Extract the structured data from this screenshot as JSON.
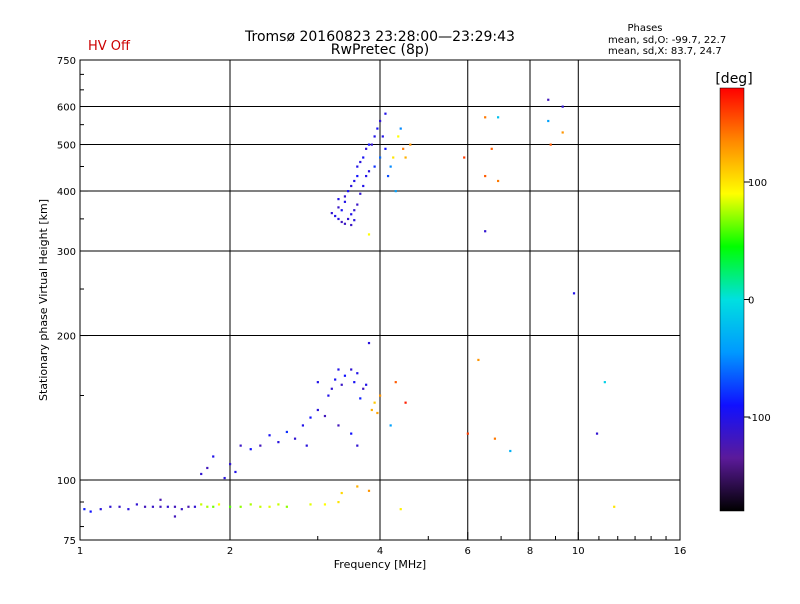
{
  "header": {
    "status": "HV Off",
    "title_line1": "Tromsø 20160823 23:28:00—23:29:43",
    "title_line2": "RwPretec (8p)",
    "phases_title": "Phases",
    "phases_o": "mean, sd,O: -99.7, 22.7",
    "phases_x": "mean, sd,X:  83.7, 24.7"
  },
  "colors": {
    "status": "#cc0000",
    "axis": "#000000",
    "colormap": [
      "#000000",
      "#5b1a9a",
      "#1010ff",
      "#0099ff",
      "#00e0e0",
      "#00ff00",
      "#ffff00",
      "#ff8800",
      "#ff0000"
    ]
  },
  "colorbar": {
    "unit_label": "[deg]",
    "ticks": [
      {
        "value": 100,
        "label": "100"
      },
      {
        "value": 0,
        "label": "0"
      },
      {
        "value": -100,
        "label": "-100"
      }
    ],
    "range": [
      -180,
      180
    ]
  },
  "chart_data": {
    "type": "scatter",
    "xlabel": "Frequency [MHz]",
    "ylabel": "Stationary phase Virtual Height [km]",
    "xscale": "log2",
    "yscale": "log",
    "xlim": [
      1,
      16
    ],
    "ylim": [
      75,
      750
    ],
    "grid": true,
    "x_ticks": [
      {
        "value": 1,
        "label": "1"
      },
      {
        "value": 2,
        "label": "2"
      },
      {
        "value": 4,
        "label": "4"
      },
      {
        "value": 6,
        "label": "6"
      },
      {
        "value": 8,
        "label": "8"
      },
      {
        "value": 10,
        "label": "10"
      },
      {
        "value": 16,
        "label": "16"
      }
    ],
    "x_gridlines": [
      2,
      4,
      6,
      8,
      10
    ],
    "x_minor": [
      3,
      5,
      7,
      9,
      11,
      12,
      13,
      14,
      15
    ],
    "y_ticks": [
      {
        "value": 75,
        "label": "75"
      },
      {
        "value": 100,
        "label": "100"
      },
      {
        "value": 200,
        "label": "200"
      },
      {
        "value": 300,
        "label": "300"
      },
      {
        "value": 400,
        "label": "400"
      },
      {
        "value": 500,
        "label": "500"
      },
      {
        "value": 600,
        "label": "600"
      },
      {
        "value": 750,
        "label": "750"
      }
    ],
    "y_gridlines": [
      100,
      200,
      300,
      400,
      500,
      600
    ],
    "y_minor": [
      80,
      90,
      150,
      250,
      350,
      450,
      550,
      650,
      700
    ],
    "series": [
      {
        "points": [
          [
            1.02,
            87,
            -85
          ],
          [
            1.05,
            86,
            -90
          ],
          [
            1.1,
            87,
            -105
          ],
          [
            1.15,
            88,
            -110
          ],
          [
            1.2,
            88,
            -115
          ],
          [
            1.25,
            87,
            -105
          ],
          [
            1.3,
            89,
            -110
          ],
          [
            1.35,
            88,
            -120
          ],
          [
            1.4,
            88,
            -115
          ],
          [
            1.45,
            88,
            -120
          ],
          [
            1.5,
            88,
            -110
          ],
          [
            1.55,
            88,
            -120
          ],
          [
            1.6,
            87,
            -115
          ],
          [
            1.65,
            88,
            -125
          ],
          [
            1.7,
            88,
            -110
          ],
          [
            1.75,
            89,
            80
          ],
          [
            1.8,
            88,
            75
          ],
          [
            1.85,
            88,
            65
          ],
          [
            1.9,
            89,
            90
          ],
          [
            2.0,
            88,
            60
          ],
          [
            2.1,
            88,
            70
          ],
          [
            2.2,
            89,
            75
          ],
          [
            2.3,
            88,
            80
          ],
          [
            2.4,
            88,
            85
          ],
          [
            2.5,
            89,
            80
          ],
          [
            2.6,
            88,
            70
          ],
          [
            2.9,
            89,
            85
          ],
          [
            3.1,
            89,
            90
          ],
          [
            3.3,
            90,
            100
          ],
          [
            3.35,
            94,
            105
          ],
          [
            3.6,
            97,
            120
          ],
          [
            3.8,
            95,
            130
          ],
          [
            4.4,
            87,
            95
          ],
          [
            1.55,
            84,
            -120
          ],
          [
            1.45,
            91,
            -125
          ]
        ]
      },
      {
        "points": [
          [
            1.75,
            103,
            -110
          ],
          [
            1.8,
            106,
            -120
          ],
          [
            1.85,
            112,
            -100
          ],
          [
            1.95,
            101,
            -105
          ],
          [
            2.0,
            108,
            -110
          ],
          [
            2.05,
            104,
            -100
          ],
          [
            2.1,
            118,
            -115
          ],
          [
            2.2,
            116,
            -90
          ],
          [
            2.3,
            118,
            -120
          ],
          [
            2.4,
            124,
            -95
          ],
          [
            2.5,
            120,
            -105
          ],
          [
            2.6,
            126,
            -80
          ],
          [
            2.7,
            122,
            -110
          ],
          [
            2.8,
            130,
            -100
          ],
          [
            2.9,
            135,
            -90
          ],
          [
            3.0,
            140,
            -105
          ],
          [
            3.1,
            136,
            -120
          ],
          [
            3.15,
            150,
            -100
          ],
          [
            3.2,
            155,
            -110
          ],
          [
            3.25,
            162,
            -95
          ],
          [
            3.3,
            170,
            -100
          ],
          [
            3.35,
            158,
            -115
          ],
          [
            3.4,
            165,
            -90
          ],
          [
            3.5,
            170,
            -110
          ],
          [
            3.55,
            160,
            -95
          ],
          [
            3.6,
            167,
            -100
          ],
          [
            3.65,
            148,
            -85
          ],
          [
            3.7,
            155,
            -120
          ],
          [
            3.75,
            158,
            -100
          ],
          [
            3.8,
            193,
            -105
          ],
          [
            3.5,
            125,
            -90
          ],
          [
            3.6,
            118,
            -110
          ],
          [
            3.3,
            130,
            -120
          ],
          [
            3.0,
            160,
            -100
          ],
          [
            2.85,
            118,
            -105
          ],
          [
            3.85,
            140,
            120
          ],
          [
            3.9,
            145,
            110
          ],
          [
            3.95,
            138,
            125
          ],
          [
            4.0,
            150,
            130
          ],
          [
            4.3,
            160,
            150
          ],
          [
            4.2,
            130,
            -40
          ],
          [
            4.5,
            145,
            170
          ]
        ]
      },
      {
        "points": [
          [
            3.2,
            360,
            -110
          ],
          [
            3.25,
            355,
            -100
          ],
          [
            3.3,
            370,
            -115
          ],
          [
            3.3,
            350,
            -105
          ],
          [
            3.35,
            345,
            -120
          ],
          [
            3.4,
            380,
            -100
          ],
          [
            3.4,
            390,
            -110
          ],
          [
            3.45,
            400,
            -95
          ],
          [
            3.5,
            410,
            -105
          ],
          [
            3.5,
            340,
            -115
          ],
          [
            3.55,
            420,
            -100
          ],
          [
            3.55,
            365,
            -110
          ],
          [
            3.6,
            430,
            -90
          ],
          [
            3.6,
            450,
            -100
          ],
          [
            3.6,
            375,
            -115
          ],
          [
            3.65,
            460,
            -105
          ],
          [
            3.65,
            395,
            -110
          ],
          [
            3.7,
            470,
            -95
          ],
          [
            3.7,
            410,
            -100
          ],
          [
            3.75,
            490,
            -110
          ],
          [
            3.75,
            430,
            -100
          ],
          [
            3.8,
            500,
            -90
          ],
          [
            3.8,
            440,
            -105
          ],
          [
            3.85,
            500,
            -110
          ],
          [
            3.9,
            520,
            -100
          ],
          [
            3.95,
            540,
            -95
          ],
          [
            4.0,
            560,
            -110
          ],
          [
            4.05,
            520,
            -100
          ],
          [
            4.1,
            490,
            -90
          ],
          [
            4.1,
            580,
            -100
          ],
          [
            3.45,
            350,
            -110
          ],
          [
            3.5,
            358,
            -100
          ],
          [
            3.55,
            348,
            -105
          ],
          [
            3.4,
            342,
            -115
          ],
          [
            3.35,
            365,
            -95
          ],
          [
            3.3,
            385,
            -100
          ],
          [
            3.9,
            450,
            -80
          ],
          [
            4.0,
            470,
            -60
          ],
          [
            4.2,
            450,
            -50
          ],
          [
            4.25,
            470,
            100
          ],
          [
            4.35,
            520,
            90
          ],
          [
            4.45,
            490,
            140
          ],
          [
            4.4,
            540,
            -50
          ],
          [
            3.8,
            325,
            90
          ],
          [
            4.6,
            500,
            130
          ],
          [
            4.5,
            470,
            120
          ],
          [
            4.15,
            430,
            -70
          ],
          [
            4.3,
            400,
            -40
          ]
        ]
      },
      {
        "points": [
          [
            5.9,
            470,
            160
          ],
          [
            6.5,
            430,
            150
          ],
          [
            6.9,
            420,
            140
          ],
          [
            6.7,
            490,
            150
          ],
          [
            6.5,
            570,
            140
          ],
          [
            6.9,
            570,
            -20
          ],
          [
            6.5,
            330,
            -110
          ],
          [
            6.0,
            125,
            160
          ],
          [
            6.3,
            178,
            130
          ],
          [
            6.8,
            122,
            140
          ],
          [
            7.3,
            115,
            -30
          ],
          [
            8.7,
            620,
            -120
          ],
          [
            8.7,
            560,
            -40
          ],
          [
            8.8,
            500,
            150
          ],
          [
            9.3,
            600,
            -110
          ],
          [
            9.3,
            530,
            130
          ],
          [
            9.8,
            245,
            -100
          ],
          [
            10.9,
            125,
            -110
          ],
          [
            11.3,
            160,
            -10
          ],
          [
            11.8,
            88,
            100
          ]
        ]
      }
    ]
  }
}
